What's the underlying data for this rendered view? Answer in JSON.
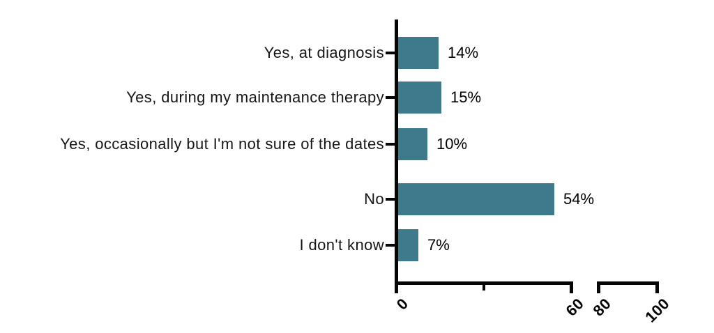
{
  "chart_data": {
    "type": "bar",
    "orientation": "horizontal",
    "title": "",
    "xlabel": "",
    "ylabel": "",
    "categories": [
      "Yes, at diagnosis",
      "Yes, during my maintenance therapy",
      "Yes, occasionally but I'm not sure of the dates",
      "No",
      "I don't know"
    ],
    "values": [
      14,
      15,
      10,
      54,
      7
    ],
    "value_labels": [
      "14%",
      "15%",
      "10%",
      "54%",
      "7%"
    ],
    "xlim": [
      0,
      100
    ],
    "x_major_ticks": [
      0,
      60,
      80,
      100
    ],
    "x_tick_labels": [
      "0",
      "60",
      "80",
      "100"
    ],
    "x_minor_ticks": [
      30
    ],
    "axis_break_between": [
      60,
      80
    ],
    "bar_color": "#3d7a8c",
    "axis_color": "#050505",
    "background": "#ffffff",
    "grid": false,
    "legend": null
  }
}
